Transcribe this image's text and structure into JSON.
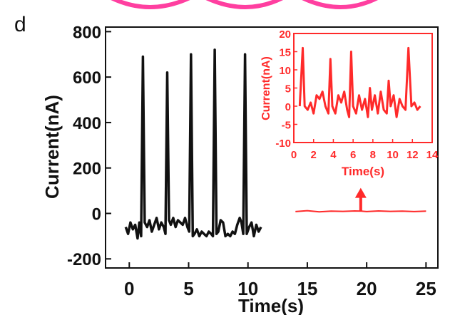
{
  "panel_label": "d",
  "colors": {
    "main_trace": "#111111",
    "inset": "#ff2a2a",
    "decor_arc": "#ff3fa0",
    "axis": "#111111"
  },
  "chart_data": [
    {
      "type": "line",
      "name": "main",
      "title": "",
      "xlabel": "Time(s)",
      "ylabel": "Current(nA)",
      "xlim": [
        -2,
        26
      ],
      "ylim": [
        -240,
        820
      ],
      "xticks": [
        0,
        5,
        10,
        15,
        20,
        25
      ],
      "yticks": [
        -200,
        0,
        200,
        400,
        600,
        800
      ],
      "grid": false,
      "series": [
        {
          "name": "",
          "x": [
            -0.3,
            -0.1,
            0.1,
            0.3,
            0.5,
            0.7,
            0.85,
            1.0,
            1.15,
            1.3,
            1.5,
            1.7,
            1.9,
            2.1,
            2.3,
            2.5,
            2.7,
            2.9,
            3.05,
            3.2,
            3.35,
            3.5,
            3.7,
            3.9,
            4.1,
            4.3,
            4.5,
            4.7,
            4.9,
            5.05,
            5.2,
            5.35,
            5.5,
            5.7,
            5.9,
            6.1,
            6.3,
            6.5,
            6.7,
            6.9,
            7.05,
            7.2,
            7.35,
            7.5,
            7.7,
            7.9,
            8.1,
            8.3,
            8.5,
            8.7,
            8.9,
            9.1,
            9.3,
            9.45,
            9.6,
            9.75,
            9.9,
            10.1,
            10.3,
            10.5,
            10.7,
            10.9,
            11.1
          ],
          "y": [
            -60,
            -90,
            -40,
            -70,
            -50,
            -110,
            -40,
            -100,
            690,
            -40,
            -60,
            -30,
            -80,
            -50,
            -20,
            -70,
            -40,
            -60,
            -90,
            620,
            -30,
            -50,
            -20,
            -60,
            -30,
            -40,
            -50,
            -20,
            -60,
            -80,
            700,
            -100,
            -90,
            -70,
            -100,
            -80,
            -90,
            -100,
            -80,
            -90,
            -100,
            720,
            -90,
            -80,
            -30,
            -40,
            -100,
            -90,
            -100,
            -80,
            -90,
            -50,
            -20,
            -40,
            -90,
            700,
            -90,
            -60,
            -40,
            -100,
            -50,
            -80,
            -60
          ]
        }
      ]
    },
    {
      "type": "line",
      "name": "inset",
      "title": "",
      "xlabel": "Time(s)",
      "ylabel": "Current(nA)",
      "xlim": [
        0,
        14
      ],
      "ylim": [
        -10,
        20
      ],
      "xticks": [
        0,
        2,
        4,
        6,
        8,
        10,
        12,
        14
      ],
      "yticks": [
        -10,
        -5,
        0,
        5,
        10,
        15,
        20
      ],
      "grid": false,
      "series": [
        {
          "name": "",
          "x": [
            0.6,
            0.9,
            1.1,
            1.4,
            1.7,
            2.0,
            2.3,
            2.6,
            2.9,
            3.2,
            3.5,
            3.7,
            3.9,
            4.2,
            4.5,
            4.8,
            5.1,
            5.4,
            5.6,
            5.8,
            6.0,
            6.3,
            6.6,
            6.9,
            7.2,
            7.5,
            7.7,
            7.9,
            8.2,
            8.5,
            8.8,
            9.1,
            9.4,
            9.6,
            9.8,
            10.1,
            10.4,
            10.7,
            11.0,
            11.3,
            11.6,
            11.9,
            12.2,
            12.5,
            12.8
          ],
          "y": [
            0,
            16,
            0,
            -1,
            1,
            -2,
            3,
            2,
            4,
            0,
            -2,
            13,
            0,
            -2,
            3,
            1,
            4,
            -1,
            -3,
            15,
            0,
            -2,
            3,
            -1,
            2,
            -3,
            5,
            -1,
            3,
            -2,
            4,
            -1,
            -2,
            7,
            0,
            3,
            -3,
            2,
            0,
            -1,
            16,
            0,
            1,
            -1,
            0
          ]
        }
      ]
    }
  ],
  "baseline_trace": {
    "x": [
      14.0,
      15.0,
      16.0,
      17.0,
      18.0,
      19.0,
      19.6,
      20.0,
      21.0,
      22.0,
      23.0,
      24.0,
      25.0
    ],
    "y": [
      8,
      12,
      7,
      10,
      9,
      11,
      10,
      8,
      11,
      9,
      10,
      8,
      10
    ],
    "arrow_from": [
      19.5,
      12
    ],
    "arrow_to": [
      19.5,
      100
    ]
  }
}
